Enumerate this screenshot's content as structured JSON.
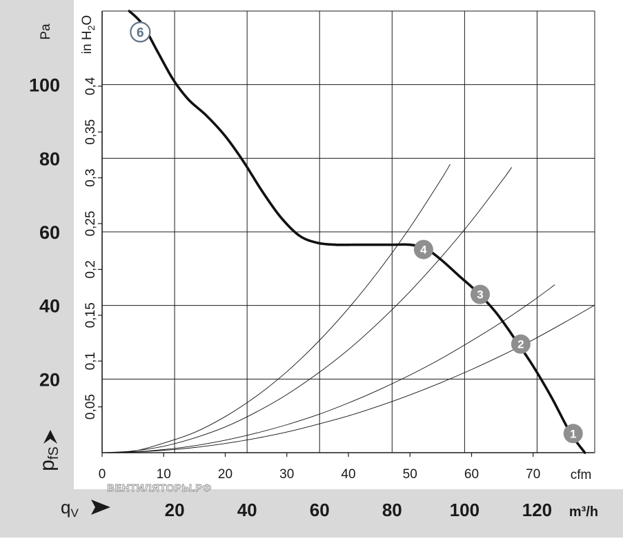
{
  "chart_data": {
    "type": "line",
    "title": "",
    "x_axis_primary": {
      "unit": "cfm",
      "range": [
        0,
        80
      ],
      "ticks": [
        "0",
        "10",
        "20",
        "30",
        "40",
        "50",
        "60",
        "70"
      ]
    },
    "x_axis_secondary": {
      "label": "q",
      "label_sub": "V",
      "unit": "m³/h",
      "range": [
        0,
        135.9
      ],
      "ticks": [
        "20",
        "40",
        "60",
        "80",
        "100",
        "120"
      ]
    },
    "y_axis_primary": {
      "label": "p",
      "label_sub": "fS",
      "unit": "Pa",
      "range": [
        0,
        120
      ],
      "ticks": [
        "20",
        "40",
        "60",
        "80",
        "100"
      ]
    },
    "y_axis_secondary": {
      "unit_prefix": "in H",
      "unit_sub": "2",
      "unit_suffix": "O",
      "range": [
        0,
        0.482
      ],
      "ticks": [
        "0,05",
        "0,1",
        "0,15",
        "0,2",
        "0,25",
        "0,3",
        "0,35",
        "0,4"
      ]
    },
    "grid": true,
    "series": [
      {
        "role": "fan-curve",
        "x_cfm": [
          4.4,
          6.5,
          9,
          11.5,
          14,
          17,
          20,
          23,
          26,
          29,
          32,
          35,
          38,
          41,
          44,
          47,
          50,
          52.5,
          55,
          58,
          61,
          64,
          67,
          70,
          73,
          76,
          78.4
        ],
        "y_pa": [
          120,
          116.5,
          109,
          101.5,
          96,
          91.5,
          86,
          79,
          71,
          64,
          59,
          57,
          56.5,
          56.5,
          56.5,
          56.5,
          56.5,
          55.5,
          52.5,
          48,
          43.5,
          38,
          31,
          23.5,
          15,
          5.5,
          0
        ]
      },
      {
        "role": "system-curve",
        "x_cfm": [
          0,
          5,
          10,
          15,
          20,
          25,
          30,
          35,
          40,
          45,
          50,
          55,
          60,
          65,
          70,
          75,
          80
        ],
        "y_pa": [
          0,
          0.16,
          0.63,
          1.4,
          2.5,
          3.9,
          5.6,
          7.7,
          10,
          12.7,
          15.7,
          19,
          22.6,
          26.5,
          30.7,
          35.3,
          40.1
        ]
      },
      {
        "role": "system-curve",
        "x_cfm": [
          0,
          5,
          10,
          15,
          20,
          25,
          30,
          35,
          40,
          45,
          50,
          55,
          60,
          65,
          70,
          73.5
        ],
        "y_pa": [
          0,
          0.2,
          0.85,
          1.9,
          3.4,
          5.3,
          7.6,
          10.3,
          13.5,
          17.1,
          21.1,
          25.5,
          30.4,
          35.6,
          41.3,
          45.6
        ]
      },
      {
        "role": "system-curve",
        "x_cfm": [
          0,
          5,
          10,
          15,
          20,
          25,
          30,
          35,
          40,
          45,
          50,
          55,
          60,
          65,
          66.5
        ],
        "y_pa": [
          0,
          0.45,
          1.75,
          4,
          7,
          11,
          15.8,
          21.5,
          28,
          35.5,
          43.8,
          53,
          63,
          74,
          77.5
        ]
      },
      {
        "role": "system-curve",
        "x_cfm": [
          0,
          5,
          10,
          15,
          20,
          25,
          30,
          35,
          40,
          45,
          50,
          55,
          56.5
        ],
        "y_pa": [
          0,
          0.35,
          2.6,
          5.5,
          9.8,
          15.3,
          22,
          30,
          39.2,
          49.6,
          61.2,
          74.1,
          78.3
        ]
      }
    ],
    "operating_points": [
      {
        "label": "1",
        "x_cfm": 76.5,
        "y_pa": 5.2,
        "style": "filled"
      },
      {
        "label": "2",
        "x_cfm": 68,
        "y_pa": 29.5,
        "style": "filled"
      },
      {
        "label": "3",
        "x_cfm": 61.4,
        "y_pa": 43,
        "style": "filled"
      },
      {
        "label": "4",
        "x_cfm": 52.2,
        "y_pa": 55.2,
        "style": "filled"
      },
      {
        "label": "6",
        "x_cfm": 6.2,
        "y_pa": 114.3,
        "style": "outline"
      }
    ],
    "colors": {
      "band": "#d9d9d9",
      "grid": "#1a1a1a",
      "curve": "#111111",
      "badge": "#8f8f8f",
      "badge_outline": "#5f7386"
    }
  },
  "watermark": "ВЕНТИЛЯТОРЫ.РФ"
}
